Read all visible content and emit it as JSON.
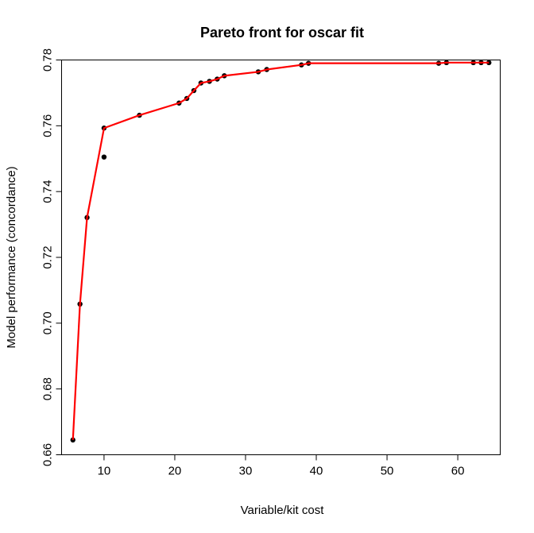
{
  "chart_data": {
    "type": "line",
    "title": "Pareto front for oscar fit",
    "xlabel": "Variable/kit cost",
    "ylabel": "Model performance (concordance)",
    "xlim": [
      4,
      66
    ],
    "ylim": [
      0.66,
      0.78
    ],
    "x_ticks": [
      10,
      20,
      30,
      40,
      50,
      60
    ],
    "y_ticks": [
      0.66,
      0.68,
      0.7,
      0.72,
      0.74,
      0.76,
      0.78
    ],
    "x_tick_labels": [
      "10",
      "20",
      "30",
      "40",
      "50",
      "60"
    ],
    "y_tick_labels": [
      "0.66",
      "0.68",
      "0.70",
      "0.72",
      "0.74",
      "0.76",
      "0.78"
    ],
    "line_color": "#ff0000",
    "point_color": "#000000",
    "grid": false,
    "points": [
      {
        "x": 5.6,
        "y": 0.6645
      },
      {
        "x": 6.6,
        "y": 0.7058
      },
      {
        "x": 7.6,
        "y": 0.7321
      },
      {
        "x": 10.0,
        "y": 0.7505
      },
      {
        "x": 10.0,
        "y": 0.7593
      },
      {
        "x": 15.0,
        "y": 0.7632
      },
      {
        "x": 20.6,
        "y": 0.7669
      },
      {
        "x": 21.7,
        "y": 0.7683
      },
      {
        "x": 22.7,
        "y": 0.7707
      },
      {
        "x": 23.7,
        "y": 0.773
      },
      {
        "x": 24.9,
        "y": 0.7735
      },
      {
        "x": 26.0,
        "y": 0.7742
      },
      {
        "x": 27.0,
        "y": 0.7752
      },
      {
        "x": 31.8,
        "y": 0.7764
      },
      {
        "x": 33.0,
        "y": 0.7771
      },
      {
        "x": 37.9,
        "y": 0.7785
      },
      {
        "x": 38.9,
        "y": 0.779
      },
      {
        "x": 57.3,
        "y": 0.779
      },
      {
        "x": 58.4,
        "y": 0.7792
      },
      {
        "x": 62.2,
        "y": 0.7792
      },
      {
        "x": 63.3,
        "y": 0.7792
      },
      {
        "x": 64.4,
        "y": 0.7792
      }
    ],
    "front_line": [
      {
        "x": 5.6,
        "y": 0.6645
      },
      {
        "x": 6.6,
        "y": 0.7058
      },
      {
        "x": 7.6,
        "y": 0.7321
      },
      {
        "x": 10.0,
        "y": 0.7593
      },
      {
        "x": 15.0,
        "y": 0.7632
      },
      {
        "x": 20.6,
        "y": 0.7669
      },
      {
        "x": 21.7,
        "y": 0.7683
      },
      {
        "x": 22.7,
        "y": 0.7707
      },
      {
        "x": 23.7,
        "y": 0.773
      },
      {
        "x": 24.9,
        "y": 0.7735
      },
      {
        "x": 26.0,
        "y": 0.7742
      },
      {
        "x": 27.0,
        "y": 0.7752
      },
      {
        "x": 31.8,
        "y": 0.7764
      },
      {
        "x": 33.0,
        "y": 0.7771
      },
      {
        "x": 37.9,
        "y": 0.7785
      },
      {
        "x": 38.9,
        "y": 0.779
      },
      {
        "x": 57.3,
        "y": 0.779
      },
      {
        "x": 58.4,
        "y": 0.7792
      },
      {
        "x": 62.2,
        "y": 0.7792
      },
      {
        "x": 63.3,
        "y": 0.7792
      },
      {
        "x": 64.4,
        "y": 0.7792
      }
    ]
  }
}
